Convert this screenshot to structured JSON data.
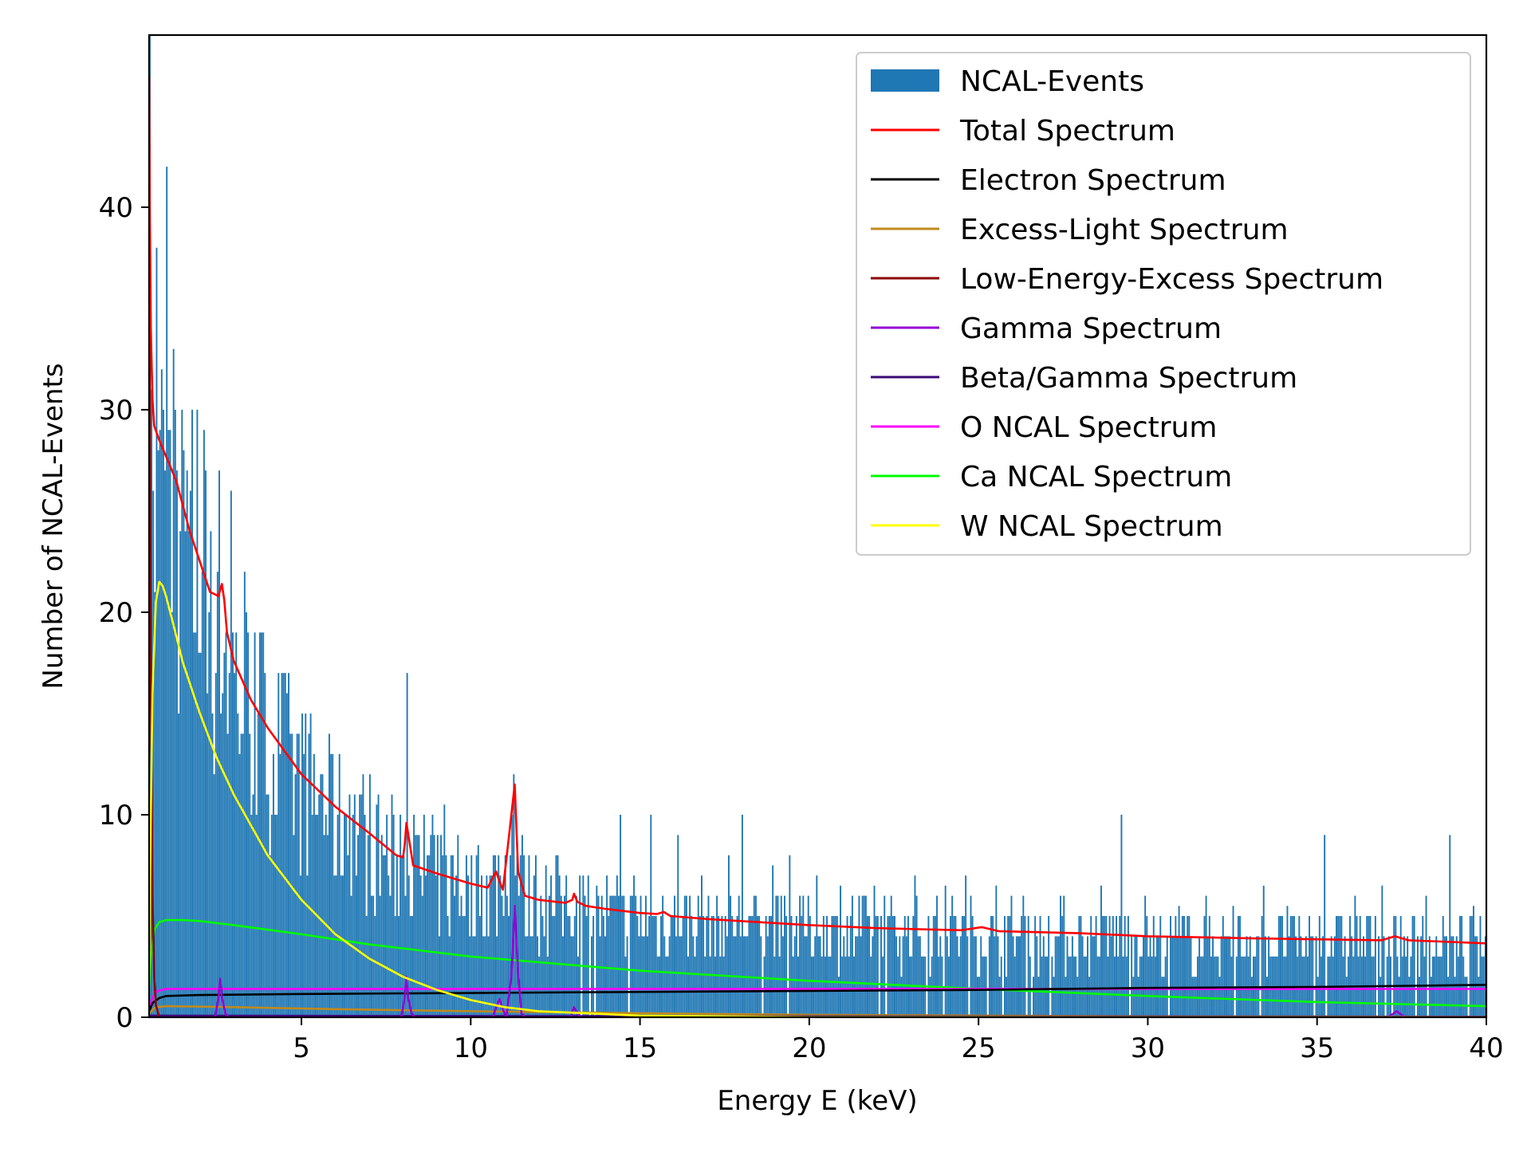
{
  "chart_data": {
    "type": "bar",
    "title": "",
    "xlabel": "Energy E (keV)",
    "ylabel": "Number of NCAL-Events",
    "xlim": [
      0.5,
      40
    ],
    "ylim": [
      0,
      48.5
    ],
    "xticks": [
      5,
      10,
      15,
      20,
      25,
      30,
      35,
      40
    ],
    "yticks": [
      0,
      10,
      20,
      30,
      40
    ],
    "grid": false,
    "legend_position": "top-right",
    "histogram": {
      "name": "NCAL-Events",
      "color": "#1f77b4",
      "bin_width": 0.05,
      "spikes": [
        [
          0.55,
          31
        ],
        [
          0.6,
          26
        ],
        [
          0.7,
          38
        ],
        [
          0.8,
          29
        ],
        [
          0.9,
          30
        ],
        [
          1.0,
          42
        ],
        [
          1.05,
          29
        ],
        [
          1.2,
          33
        ],
        [
          1.3,
          27
        ],
        [
          1.5,
          28
        ],
        [
          1.7,
          26
        ],
        [
          1.9,
          30
        ],
        [
          2.1,
          29
        ],
        [
          2.3,
          24
        ],
        [
          2.5,
          22
        ],
        [
          2.9,
          26
        ],
        [
          3.3,
          22
        ],
        [
          3.6,
          19
        ],
        [
          3.9,
          17
        ],
        [
          4.4,
          17
        ],
        [
          4.7,
          14
        ],
        [
          5.1,
          15
        ],
        [
          5.6,
          12
        ],
        [
          5.9,
          13
        ],
        [
          6.4,
          11
        ],
        [
          6.7,
          11
        ],
        [
          7.2,
          10.5
        ],
        [
          7.9,
          10
        ],
        [
          8.1,
          17
        ],
        [
          8.6,
          10
        ],
        [
          8.9,
          9
        ],
        [
          9.2,
          10.5
        ],
        [
          9.6,
          9
        ],
        [
          10.2,
          8.5
        ],
        [
          10.8,
          8
        ],
        [
          11.2,
          10
        ],
        [
          11.5,
          9
        ],
        [
          11.9,
          8
        ],
        [
          12.2,
          7.5
        ],
        [
          12.5,
          8
        ],
        [
          12.8,
          7
        ],
        [
          13.2,
          7
        ],
        [
          13.7,
          6.5
        ],
        [
          14.4,
          10
        ],
        [
          14.8,
          7
        ],
        [
          15.3,
          10
        ],
        [
          16.1,
          9
        ],
        [
          16.8,
          7
        ],
        [
          17.6,
          8
        ],
        [
          18.0,
          10
        ],
        [
          18.9,
          7.5
        ],
        [
          19.4,
          8
        ],
        [
          20.2,
          7
        ],
        [
          20.9,
          6.5
        ],
        [
          21.9,
          6.5
        ],
        [
          23.1,
          7
        ],
        [
          24.0,
          6.5
        ],
        [
          24.6,
          7
        ],
        [
          25.5,
          6.5
        ],
        [
          26.3,
          6
        ],
        [
          27.5,
          6
        ],
        [
          28.6,
          6.5
        ],
        [
          29.2,
          10
        ],
        [
          29.9,
          6
        ],
        [
          30.9,
          5.5
        ],
        [
          31.7,
          6
        ],
        [
          32.5,
          5.5
        ],
        [
          33.4,
          6.5
        ],
        [
          34.1,
          5.5
        ],
        [
          35.2,
          9
        ],
        [
          36.1,
          6
        ],
        [
          36.9,
          6.5
        ],
        [
          38.2,
          6
        ],
        [
          38.9,
          9
        ],
        [
          39.6,
          5.5
        ]
      ]
    },
    "series": [
      {
        "name": "Total Spectrum",
        "color": "#ff0000",
        "x": [
          0.5,
          0.52,
          0.55,
          0.6,
          0.65,
          0.8,
          1.0,
          1.3,
          1.7,
          2.0,
          2.3,
          2.55,
          2.65,
          2.72,
          2.8,
          3.0,
          3.5,
          4.0,
          5.0,
          6.0,
          7.0,
          7.8,
          8.0,
          8.05,
          8.1,
          8.3,
          9.0,
          10.0,
          10.5,
          10.75,
          10.85,
          10.95,
          11.1,
          11.3,
          11.4,
          11.6,
          12.0,
          12.8,
          13.0,
          13.05,
          13.15,
          13.4,
          14.0,
          15.0,
          15.5,
          15.7,
          15.9,
          17.0,
          20.0,
          22.0,
          24.5,
          25.1,
          25.6,
          28.0,
          30.0,
          33.0,
          35.0,
          36.9,
          37.3,
          37.7,
          38.5,
          40.0
        ],
        "y": [
          46.5,
          40,
          34,
          30.5,
          29.2,
          28.5,
          27.7,
          26.5,
          24,
          22.5,
          21.0,
          20.8,
          21.4,
          20.6,
          19.0,
          17.6,
          15.7,
          14.3,
          12.0,
          10.4,
          9.1,
          8.0,
          7.9,
          8.5,
          9.6,
          7.5,
          7.1,
          6.6,
          6.4,
          7.2,
          6.7,
          6.3,
          8.5,
          11.5,
          7.2,
          6.0,
          5.8,
          5.65,
          5.8,
          6.1,
          5.7,
          5.5,
          5.35,
          5.15,
          5.1,
          5.2,
          5.0,
          4.85,
          4.55,
          4.4,
          4.3,
          4.45,
          4.25,
          4.15,
          4.0,
          3.9,
          3.85,
          3.8,
          4.0,
          3.8,
          3.75,
          3.65
        ]
      },
      {
        "name": "Electron Spectrum",
        "color": "#000000",
        "x": [
          0.5,
          0.6,
          0.8,
          1.0,
          2.0,
          5.0,
          10.0,
          15.0,
          20.0,
          25.0,
          30.0,
          35.0,
          40.0
        ],
        "y": [
          0.3,
          0.7,
          0.95,
          1.05,
          1.1,
          1.15,
          1.2,
          1.25,
          1.3,
          1.35,
          1.45,
          1.5,
          1.6
        ]
      },
      {
        "name": "Excess-Light Spectrum",
        "color": "#c08a1c",
        "x": [
          0.5,
          0.7,
          1.0,
          3.0,
          6.0,
          10.0,
          15.0,
          20.0,
          30.0,
          40.0
        ],
        "y": [
          0.2,
          0.5,
          0.55,
          0.5,
          0.4,
          0.3,
          0.2,
          0.12,
          0.05,
          0.02
        ]
      },
      {
        "name": "Low-Energy-Excess Spectrum",
        "color": "#8b0000",
        "x": [
          0.5,
          0.52,
          0.55,
          0.6,
          0.65,
          0.7,
          0.8
        ],
        "y": [
          46,
          30,
          17,
          6,
          2,
          0.6,
          0
        ]
      },
      {
        "name": "Gamma Spectrum",
        "color": "#9400d3",
        "x": [
          0.5,
          2.45,
          2.55,
          2.6,
          2.65,
          2.75,
          2.85,
          7.95,
          8.05,
          8.1,
          8.15,
          8.25,
          8.35,
          10.65,
          10.75,
          10.85,
          10.95,
          11.05,
          11.2,
          11.3,
          11.4,
          11.5,
          11.6,
          12.95,
          13.05,
          13.15,
          13.25,
          37.1,
          37.35,
          37.6,
          40.0
        ],
        "y": [
          0,
          0,
          1.0,
          1.9,
          1.0,
          0.2,
          0,
          0,
          1.0,
          2.0,
          1.0,
          0.2,
          0,
          0,
          0.5,
          0.9,
          0.4,
          0,
          2.0,
          5.5,
          2.2,
          0.2,
          0,
          0,
          0.5,
          0.2,
          0,
          0,
          0.3,
          0,
          0
        ]
      },
      {
        "name": "Beta/Gamma Spectrum",
        "color": "#3c0a78",
        "x": [
          0.5,
          5.0,
          10.0,
          20.0,
          30.0,
          40.0
        ],
        "y": [
          0.08,
          0.07,
          0.06,
          0.05,
          0.04,
          0.03
        ]
      },
      {
        "name": "O NCAL Spectrum",
        "color": "#ff00ff",
        "x": [
          0.5,
          0.6,
          0.75,
          1.0,
          2.0,
          5.0,
          10.0,
          20.0,
          30.0,
          40.0
        ],
        "y": [
          0.4,
          1.0,
          1.3,
          1.4,
          1.4,
          1.4,
          1.4,
          1.4,
          1.4,
          1.4
        ]
      },
      {
        "name": "Ca NCAL Spectrum",
        "color": "#00ff00",
        "x": [
          0.5,
          0.55,
          0.65,
          0.8,
          1.0,
          1.5,
          2.0,
          3.0,
          5.0,
          7.0,
          10.0,
          15.0,
          20.0,
          25.0,
          30.0,
          35.0,
          40.0
        ],
        "y": [
          1.5,
          3.0,
          4.3,
          4.7,
          4.8,
          4.8,
          4.75,
          4.55,
          4.1,
          3.6,
          3.0,
          2.3,
          1.8,
          1.4,
          1.05,
          0.75,
          0.55
        ]
      },
      {
        "name": "W NCAL Spectrum",
        "color": "#ffff00",
        "x": [
          0.5,
          0.55,
          0.6,
          0.7,
          0.8,
          0.9,
          1.0,
          1.2,
          1.5,
          2.0,
          2.5,
          3.0,
          4.0,
          5.0,
          6.0,
          7.0,
          8.0,
          9.0,
          10.0,
          11.0,
          12.0,
          15.0,
          20.0,
          40.0
        ],
        "y": [
          2,
          10,
          16,
          20.5,
          21.5,
          21.3,
          20.8,
          19.5,
          17.5,
          15.0,
          12.8,
          11.0,
          8.0,
          5.8,
          4.1,
          2.9,
          2.0,
          1.35,
          0.85,
          0.5,
          0.3,
          0.08,
          0.01,
          0
        ]
      }
    ]
  }
}
